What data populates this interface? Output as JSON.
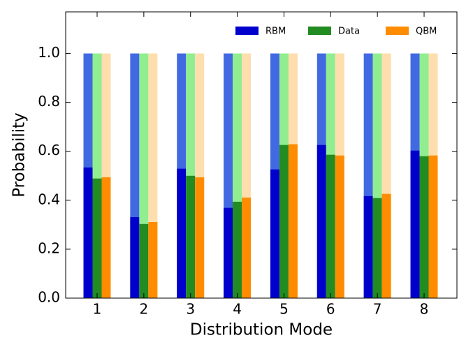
{
  "chart_data": {
    "type": "bar",
    "x_label": "Distribution Mode",
    "y_label": "Probability",
    "categories": [
      "1",
      "2",
      "3",
      "4",
      "5",
      "6",
      "7",
      "8"
    ],
    "series": [
      {
        "name": "RBM",
        "color": "#0000cd",
        "light_color": "#4169e1",
        "values": [
          0.534,
          0.331,
          0.529,
          0.369,
          0.526,
          0.626,
          0.417,
          0.603
        ]
      },
      {
        "name": "Data",
        "color": "#228b22",
        "light_color": "#90ee90",
        "values": [
          0.489,
          0.303,
          0.5,
          0.394,
          0.626,
          0.586,
          0.409,
          0.58
        ]
      },
      {
        "name": "QBM",
        "color": "#ff8c00",
        "light_color": "#ffdead",
        "values": [
          0.494,
          0.311,
          0.494,
          0.411,
          0.629,
          0.583,
          0.426,
          0.583
        ]
      }
    ],
    "ylim": [
      0,
      1.17
    ],
    "yticks": [
      {
        "value": 0,
        "label": "0.0"
      },
      0.2,
      0.4,
      0.6,
      0.8,
      {
        "value": 1,
        "label": "1.0"
      }
    ],
    "legend": "upper right",
    "grid": false
  }
}
